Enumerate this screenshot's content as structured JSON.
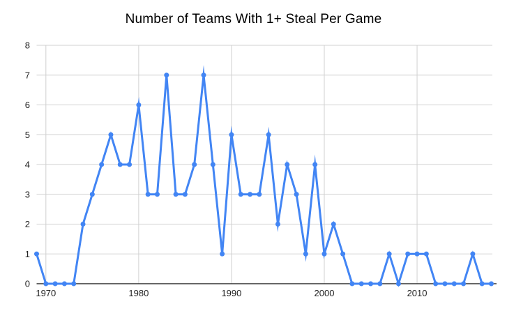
{
  "chart_data": {
    "type": "line",
    "title": "Number of Teams With 1+ Steal Per Game",
    "x": [
      1969,
      1970,
      1971,
      1972,
      1973,
      1974,
      1975,
      1976,
      1977,
      1978,
      1979,
      1980,
      1981,
      1982,
      1983,
      1984,
      1985,
      1986,
      1987,
      1988,
      1989,
      1990,
      1991,
      1992,
      1993,
      1994,
      1995,
      1996,
      1997,
      1998,
      1999,
      2000,
      2001,
      2002,
      2003,
      2004,
      2005,
      2006,
      2007,
      2008,
      2009,
      2010,
      2011,
      2012,
      2013,
      2014,
      2015,
      2016,
      2017,
      2018
    ],
    "values": [
      1,
      0,
      0,
      0,
      0,
      2,
      3,
      4,
      5,
      4,
      4,
      6,
      3,
      3,
      7,
      3,
      3,
      4,
      7,
      4,
      1,
      5,
      3,
      3,
      3,
      5,
      2,
      4,
      3,
      1,
      4,
      1,
      2,
      1,
      0,
      0,
      0,
      0,
      1,
      0,
      1,
      1,
      1,
      0,
      0,
      0,
      0,
      1,
      0,
      0
    ],
    "xlabel": "",
    "ylabel": "",
    "xticks": [
      1970,
      1980,
      1990,
      2000,
      2010
    ],
    "yticks": [
      0,
      1,
      2,
      3,
      4,
      5,
      6,
      7,
      8
    ],
    "xlim": [
      1969,
      2018
    ],
    "ylim": [
      0,
      8
    ],
    "grid": true,
    "legend_position": "none",
    "line_color": "#4285f4",
    "gridline_color": "#d0d0d0",
    "axis_line_color": "#333333",
    "label_color": "#222222",
    "title_color": "#000000",
    "background_color": "#ffffff"
  }
}
